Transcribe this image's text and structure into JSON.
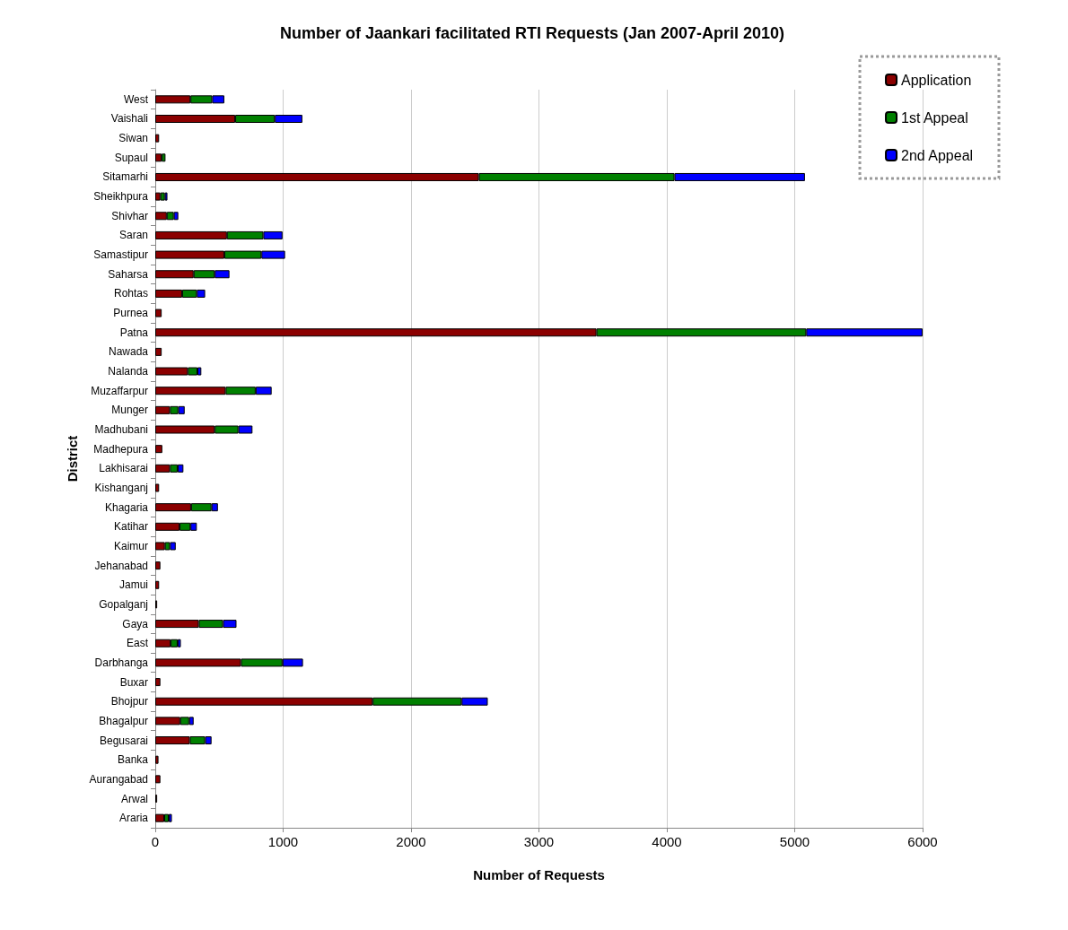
{
  "chart_data": {
    "type": "bar",
    "orientation": "horizontal",
    "stacked": true,
    "title": "Number of Jaankari facilitated RTI Requests (Jan 2007-April 2010)",
    "xlabel": "Number of Requests",
    "ylabel": "District",
    "categories": [
      "West",
      "Vaishali",
      "Siwan",
      "Supaul",
      "Sitamarhi",
      "Sheikhpura",
      "Shivhar",
      "Saran",
      "Samastipur",
      "Saharsa",
      "Rohtas",
      "Purnea",
      "Patna",
      "Nawada",
      "Nalanda",
      "Muzaffarpur",
      "Munger",
      "Madhubani",
      "Madhepura",
      "Lakhisarai",
      "Kishanganj",
      "Khagaria",
      "Katihar",
      "Kaimur",
      "Jehanabad",
      "Jamui",
      "Gopalganj",
      "Gaya",
      "East",
      "Darbhanga",
      "Buxar",
      "Bhojpur",
      "Bhagalpur",
      "Begusarai",
      "Banka",
      "Aurangabad",
      "Arwal",
      "Araria"
    ],
    "series": [
      {
        "name": "Application",
        "color": "#8b0000",
        "values": [
          275,
          625,
          30,
          50,
          2530,
          40,
          90,
          560,
          540,
          300,
          210,
          50,
          3450,
          50,
          255,
          550,
          115,
          465,
          55,
          115,
          30,
          280,
          190,
          75,
          40,
          30,
          15,
          340,
          120,
          670,
          40,
          1700,
          195,
          270,
          25,
          40,
          15,
          70
        ]
      },
      {
        "name": "1st Appeal",
        "color": "#008000",
        "values": [
          170,
          310,
          0,
          30,
          1530,
          35,
          55,
          285,
          290,
          165,
          115,
          0,
          1640,
          0,
          75,
          235,
          65,
          185,
          0,
          60,
          0,
          160,
          85,
          40,
          0,
          0,
          0,
          190,
          55,
          325,
          0,
          695,
          70,
          120,
          0,
          0,
          0,
          35
        ]
      },
      {
        "name": "2nd Appeal",
        "color": "#0000ff",
        "values": [
          95,
          215,
          0,
          0,
          1020,
          20,
          35,
          150,
          185,
          115,
          65,
          0,
          910,
          0,
          30,
          125,
          50,
          110,
          0,
          45,
          0,
          50,
          50,
          45,
          0,
          0,
          0,
          105,
          25,
          160,
          0,
          205,
          35,
          50,
          0,
          0,
          0,
          25
        ]
      }
    ],
    "xlim": [
      0,
      6000
    ],
    "xticks": [
      0,
      1000,
      2000,
      3000,
      4000,
      5000,
      6000
    ],
    "grid": "x",
    "legend": "top right"
  }
}
